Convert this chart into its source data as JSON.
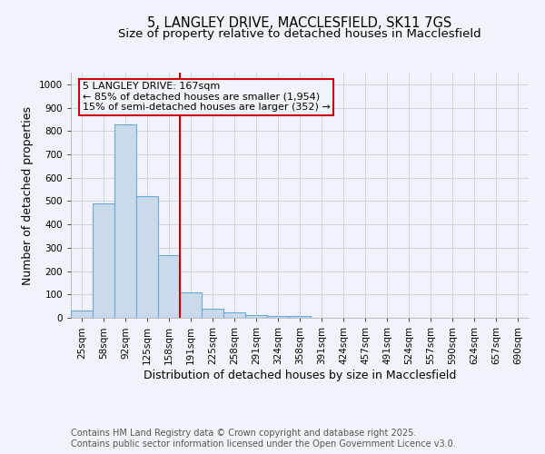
{
  "title_line1": "5, LANGLEY DRIVE, MACCLESFIELD, SK11 7GS",
  "title_line2": "Size of property relative to detached houses in Macclesfield",
  "xlabel": "Distribution of detached houses by size in Macclesfield",
  "ylabel": "Number of detached properties",
  "categories": [
    "25sqm",
    "58sqm",
    "92sqm",
    "125sqm",
    "158sqm",
    "191sqm",
    "225sqm",
    "258sqm",
    "291sqm",
    "324sqm",
    "358sqm",
    "391sqm",
    "424sqm",
    "457sqm",
    "491sqm",
    "524sqm",
    "557sqm",
    "590sqm",
    "624sqm",
    "657sqm",
    "690sqm"
  ],
  "values": [
    30,
    490,
    830,
    520,
    270,
    110,
    38,
    22,
    10,
    7,
    6,
    0,
    0,
    0,
    0,
    0,
    0,
    0,
    0,
    0,
    0
  ],
  "bar_color": "#c9daea",
  "bar_edge_color": "#6aaad4",
  "ylim": [
    0,
    1050
  ],
  "yticks": [
    0,
    100,
    200,
    300,
    400,
    500,
    600,
    700,
    800,
    900,
    1000
  ],
  "vline_x_index": 4.5,
  "vline_color": "#cc0000",
  "annotation_text": "5 LANGLEY DRIVE: 167sqm\n← 85% of detached houses are smaller (1,954)\n15% of semi-detached houses are larger (352) →",
  "footnote1": "Contains HM Land Registry data © Crown copyright and database right 2025.",
  "footnote2": "Contains public sector information licensed under the Open Government Licence v3.0.",
  "background_color": "#f0f4fa",
  "grid_color": "#c8d0de",
  "title_fontsize": 10.5,
  "subtitle_fontsize": 9.5,
  "label_fontsize": 9,
  "tick_fontsize": 7.5,
  "footnote_fontsize": 7,
  "ann_fontsize": 8
}
